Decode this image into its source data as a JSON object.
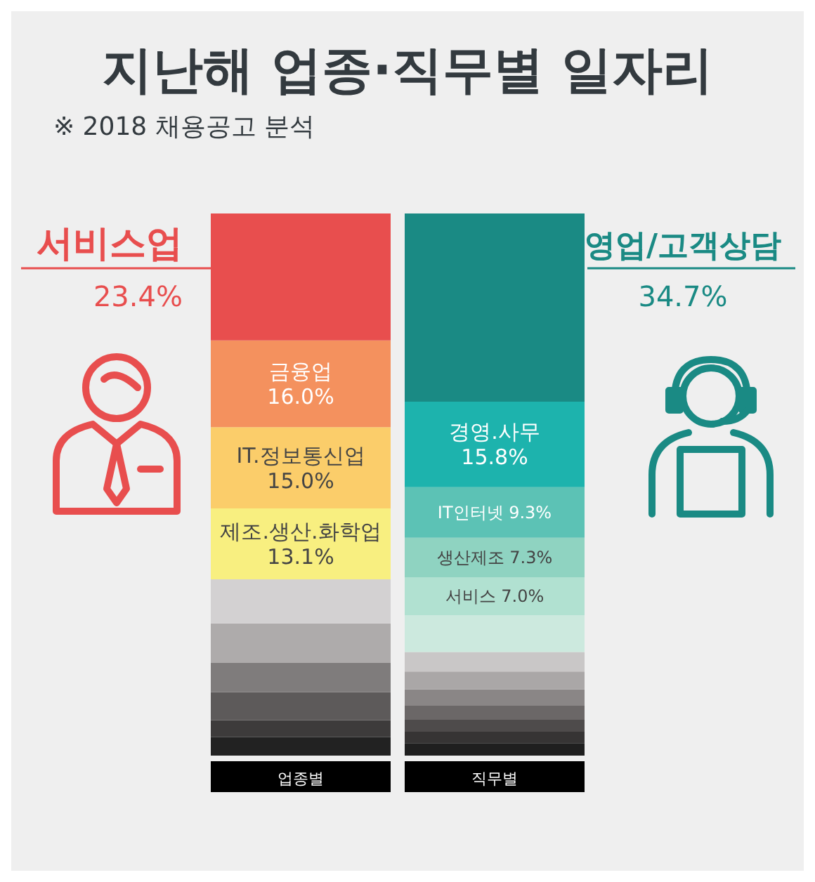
{
  "chart_data": {
    "type": "bar",
    "stacked": true,
    "title": "지난해 업종·직무별 일자리",
    "subtitle": "※ 2018 채용공고 분석",
    "categories": [
      "업종별",
      "직무별"
    ],
    "series": [
      {
        "colors": [
          null,
          "#1f1f1f"
        ],
        "values": [
          null,
          2.3
        ]
      },
      {
        "colors": [
          null,
          "#363434"
        ],
        "values": [
          null,
          2.1
        ]
      },
      {
        "colors": [
          null,
          "#4e4b4b"
        ],
        "values": [
          null,
          2.2
        ]
      },
      {
        "colors": [
          "#222222",
          "#6b6767"
        ],
        "values": [
          3.4,
          2.6
        ]
      },
      {
        "colors": [
          "#3d3b3b",
          "#8a8686"
        ],
        "values": [
          3.1,
          3.0
        ]
      },
      {
        "colors": [
          "#5d5a5a",
          "#aaa7a7"
        ],
        "values": [
          5.2,
          3.3
        ]
      },
      {
        "colors": [
          "#7f7c7c",
          "#c9c7c7"
        ],
        "values": [
          5.4,
          3.6
        ]
      },
      {
        "colors": [
          "#aeabab",
          "#cce9de"
        ],
        "values": [
          7.3,
          6.8
        ]
      },
      {
        "colors": [
          "#d3d1d2",
          "#b1e1d1"
        ],
        "values": [
          8.1,
          7.0
        ],
        "value_labels": [
          null,
          "서비스 7.0%"
        ]
      },
      {
        "colors": [
          "#f8ef80",
          "#8fd3c1"
        ],
        "values": [
          13.1,
          7.3
        ],
        "value_labels": [
          "제조.생산.화학업\n13.1%",
          "생산제조 7.3%"
        ]
      },
      {
        "colors": [
          "#fbcd6a",
          "#5cc2b5"
        ],
        "values": [
          15.0,
          9.3
        ],
        "value_labels": [
          "IT.정보통신업\n15.0%",
          "IT인터넷 9.3%"
        ]
      },
      {
        "colors": [
          "#f4915e",
          "#1db3ad"
        ],
        "values": [
          16.0,
          15.8
        ],
        "value_labels": [
          "금융업\n16.0%",
          "경영.사무\n15.8%"
        ]
      },
      {
        "colors": [
          "#e84e4e",
          "#1a8a84"
        ],
        "values": [
          23.4,
          34.7
        ],
        "value_labels": [
          "서비스업\n23.4%",
          "영업/고객상담\n34.7%"
        ]
      }
    ]
  }
}
